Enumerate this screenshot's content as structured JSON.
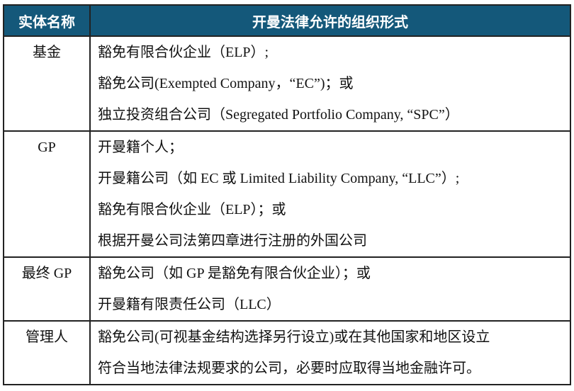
{
  "header": {
    "entity": "实体名称",
    "forms": "开曼法律允许的组织形式"
  },
  "colors": {
    "header_bg": "#14587a",
    "header_text": "#ffffff",
    "border": "#222222"
  },
  "rows": [
    {
      "entity": "基金",
      "forms": [
        "豁免有限合伙企业（ELP）;",
        "豁免公司(Exempted Company，“EC”)；或",
        "独立投资组合公司（Segregated Portfolio Company, “SPC”）"
      ]
    },
    {
      "entity": "GP",
      "forms": [
        "开曼籍个人；",
        "开曼籍公司（如 EC 或 Limited Liability Company, “LLC”）;",
        "豁免有限合伙企业（ELP）；或",
        "根据开曼公司法第四章进行注册的外国公司"
      ]
    },
    {
      "entity": "最终 GP",
      "forms": [
        "豁免公司（如 GP 是豁免有限合伙企业）；或",
        "开曼籍有限责任公司（LLC）"
      ]
    },
    {
      "entity": "管理人",
      "forms": [
        "豁免公司(可视基金结构选择另行设立)或在其他国家和地区设立",
        "符合当地法律法规要求的公司，必要时应取得当地金融许可。"
      ]
    }
  ]
}
